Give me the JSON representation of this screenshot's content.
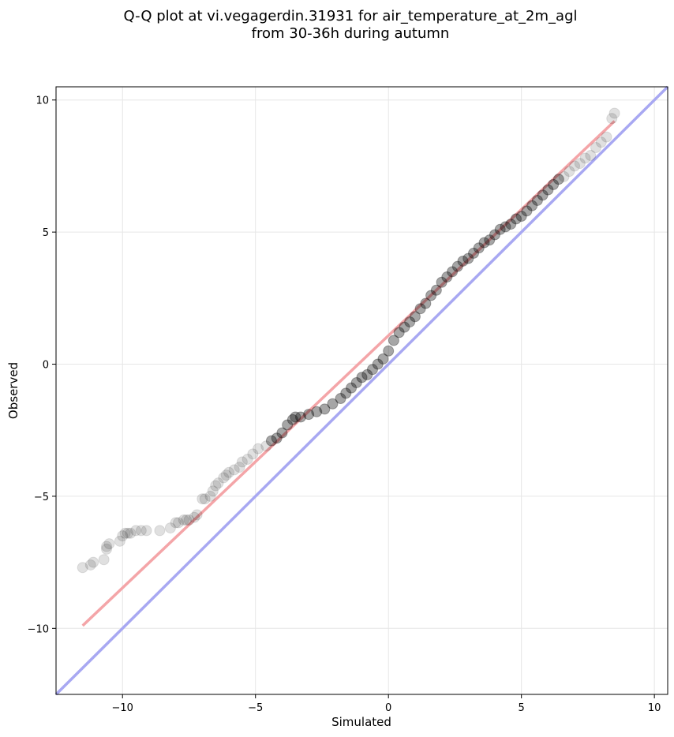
{
  "chart_data": {
    "type": "scatter",
    "title_line1": "Q-Q plot at vi.vegagerdin.31931 for air_temperature_at_2m_agl",
    "title_line2": "from 30-36h during autumn",
    "xlabel": "Simulated",
    "ylabel": "Observed",
    "xlim": [
      -12.5,
      10.5
    ],
    "ylim": [
      -12.5,
      10.5
    ],
    "xticks": [
      -10,
      -5,
      0,
      5,
      10
    ],
    "yticks": [
      -10,
      -5,
      0,
      5,
      10
    ],
    "xtick_labels": [
      "−10",
      "−5",
      "0",
      "5",
      "10"
    ],
    "ytick_labels": [
      "−10",
      "−5",
      "0",
      "5",
      "10"
    ],
    "grid": true,
    "colors": {
      "points": "#000000",
      "fit_line": "#f4a5a8",
      "identity_line": "#a8a8f2",
      "grid": "#e6e6e6"
    },
    "fit_line": {
      "x": [
        -11.5,
        8.5
      ],
      "y": [
        -9.9,
        9.2
      ]
    },
    "identity_line": {
      "x": [
        -12.5,
        10.5
      ],
      "y": [
        -12.5,
        10.5
      ]
    },
    "points": {
      "x": [
        -11.5,
        -11.2,
        -11.1,
        -10.7,
        -10.6,
        -10.6,
        -10.5,
        -10.1,
        -10.0,
        -9.9,
        -9.8,
        -9.7,
        -9.5,
        -9.3,
        -9.1,
        -8.6,
        -8.2,
        -8.0,
        -7.9,
        -7.7,
        -7.6,
        -7.5,
        -7.3,
        -7.2,
        -7.0,
        -6.9,
        -6.7,
        -6.6,
        -6.5,
        -6.4,
        -6.2,
        -6.1,
        -6.0,
        -5.8,
        -5.6,
        -5.5,
        -5.3,
        -5.1,
        -4.9,
        -4.6,
        -4.4,
        -4.2,
        -4.0,
        -3.8,
        -3.6,
        -3.5,
        -3.3,
        -3.0,
        -2.7,
        -2.4,
        -2.1,
        -1.8,
        -1.6,
        -1.4,
        -1.2,
        -1.0,
        -0.8,
        -0.6,
        -0.4,
        -0.2,
        0.0,
        0.2,
        0.4,
        0.6,
        0.8,
        1.0,
        1.2,
        1.4,
        1.6,
        1.8,
        2.0,
        2.2,
        2.4,
        2.6,
        2.8,
        3.0,
        3.2,
        3.4,
        3.6,
        3.8,
        4.0,
        4.2,
        4.4,
        4.6,
        4.8,
        5.0,
        5.2,
        5.4,
        5.6,
        5.8,
        6.0,
        6.2,
        6.4,
        6.6,
        6.8,
        7.0,
        7.2,
        7.4,
        7.6,
        7.8,
        8.0,
        8.2,
        8.4,
        8.5
      ],
      "y": [
        -7.7,
        -7.6,
        -7.5,
        -7.4,
        -7.0,
        -6.9,
        -6.8,
        -6.7,
        -6.5,
        -6.4,
        -6.4,
        -6.4,
        -6.3,
        -6.3,
        -6.3,
        -6.3,
        -6.2,
        -6.0,
        -6.0,
        -5.9,
        -5.9,
        -5.9,
        -5.8,
        -5.7,
        -5.1,
        -5.1,
        -5.0,
        -4.8,
        -4.6,
        -4.5,
        -4.3,
        -4.2,
        -4.1,
        -4.0,
        -3.9,
        -3.7,
        -3.6,
        -3.4,
        -3.2,
        -3.1,
        -2.9,
        -2.8,
        -2.6,
        -2.3,
        -2.1,
        -2.0,
        -2.0,
        -1.9,
        -1.8,
        -1.7,
        -1.5,
        -1.3,
        -1.1,
        -0.9,
        -0.7,
        -0.5,
        -0.4,
        -0.2,
        0.0,
        0.2,
        0.5,
        0.9,
        1.2,
        1.4,
        1.6,
        1.8,
        2.1,
        2.3,
        2.6,
        2.8,
        3.1,
        3.3,
        3.5,
        3.7,
        3.9,
        4.0,
        4.2,
        4.4,
        4.6,
        4.7,
        4.9,
        5.1,
        5.2,
        5.3,
        5.5,
        5.6,
        5.8,
        6.0,
        6.2,
        6.4,
        6.6,
        6.8,
        7.0,
        7.1,
        7.3,
        7.5,
        7.6,
        7.8,
        7.9,
        8.2,
        8.4,
        8.6,
        9.3,
        9.5
      ]
    }
  }
}
